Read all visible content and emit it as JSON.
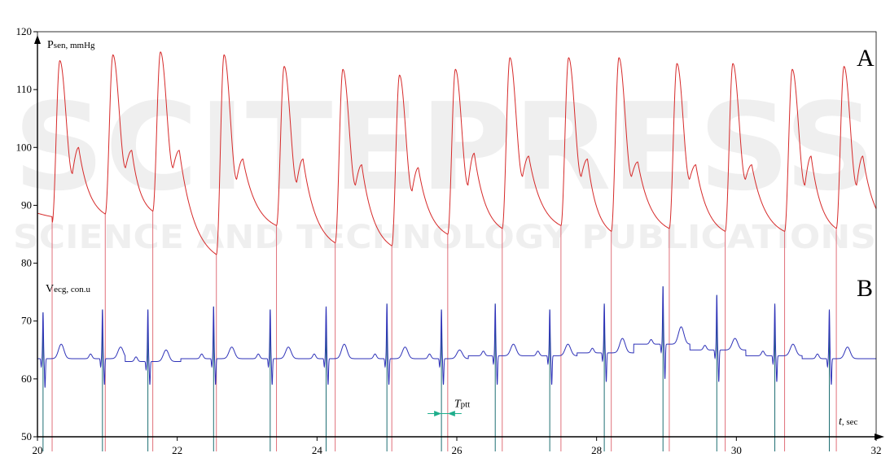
{
  "chart_data": {
    "type": "line",
    "xlim": [
      20,
      32
    ],
    "ylim": [
      50,
      120
    ],
    "x_ticks": [
      20,
      22,
      24,
      26,
      28,
      30,
      32
    ],
    "y_ticks": [
      50,
      60,
      70,
      80,
      90,
      100,
      110,
      120
    ],
    "grid": false,
    "x_label_main": "t",
    "x_label_unit": ", sec",
    "series": [
      {
        "label_main": "P",
        "label_sub": "sen, mmHg",
        "color": "#d62a2a",
        "panel_label": "A",
        "beat_onsets": [
          20.21,
          20.97,
          21.65,
          22.56,
          23.42,
          24.26,
          25.07,
          25.87,
          26.65,
          27.49,
          28.21,
          29.04,
          29.84,
          30.69,
          31.43
        ],
        "trough_values": [
          87,
          88.5,
          89,
          81.5,
          86.5,
          83.5,
          83,
          85,
          86,
          86.5,
          85.5,
          86,
          85.5,
          85.5,
          86
        ],
        "peak_values": [
          115,
          116,
          116.5,
          116,
          114,
          113.5,
          112.5,
          113.5,
          115.5,
          115.5,
          115.5,
          114.5,
          114.5,
          113.5,
          114
        ],
        "notch_values": [
          95.5,
          96.5,
          96.5,
          94.5,
          94,
          93.5,
          92.5,
          93.5,
          95,
          95,
          95,
          94.5,
          94.5,
          93.5,
          93.5
        ],
        "dicrotic_values": [
          100,
          99.5,
          99.5,
          98,
          98,
          97,
          96.5,
          99,
          98.5,
          98,
          97.5,
          97,
          97,
          98.5,
          98.5
        ]
      },
      {
        "label_main": "V",
        "label_sub": "ecg, con.u",
        "color": "#2e32b8",
        "panel_label": "B",
        "r_peak_times": [
          20.08,
          20.93,
          21.58,
          22.52,
          23.33,
          24.13,
          25.0,
          25.78,
          26.55,
          27.33,
          28.11,
          28.95,
          29.72,
          30.55,
          31.33
        ],
        "r_peak_values": [
          71.5,
          72,
          72,
          72.5,
          72,
          72.5,
          73,
          72,
          73,
          72,
          73,
          76,
          74.5,
          73,
          72
        ],
        "s_trough_values": [
          58.5,
          59,
          59,
          59,
          59,
          59,
          59,
          59,
          59,
          59,
          59.5,
          60,
          59.5,
          59.5,
          59
        ],
        "baseline": [
          63.5,
          63.5,
          63,
          63.5,
          63.5,
          63.5,
          63.5,
          63.5,
          64,
          64,
          64.5,
          66,
          65,
          64,
          63.5
        ],
        "t_wave_values": [
          66,
          65.5,
          65,
          65.5,
          65.5,
          66,
          65.5,
          65,
          66,
          66,
          67,
          69,
          67,
          66,
          65.5
        ]
      }
    ],
    "annotation": {
      "label_main": "T",
      "label_sub": "ptt",
      "x_start": 25.78,
      "x_end": 25.87,
      "y": 54,
      "color": "#1fae8c"
    },
    "marker_line_colors": {
      "ecg": "#1f6f73",
      "pressure": "#e0707a"
    }
  },
  "watermark": {
    "line1": "SCITEPRESS",
    "line2": "SCIENCE AND TECHNOLOGY PUBLICATIONS"
  }
}
